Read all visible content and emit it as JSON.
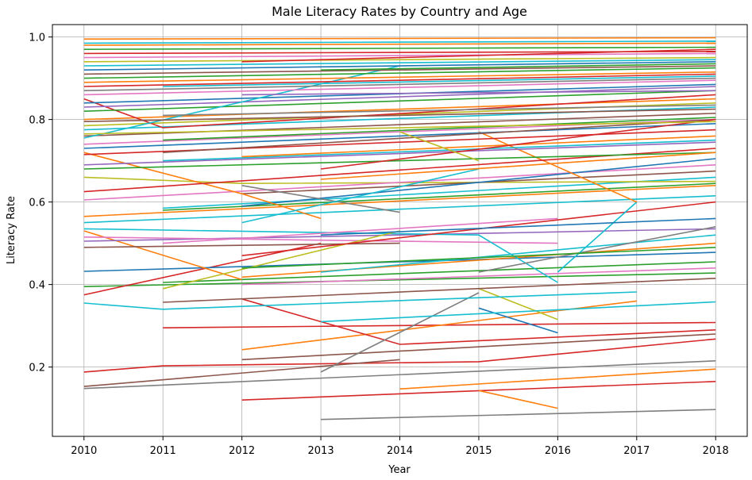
{
  "chart_data": {
    "type": "line",
    "title": "Male Literacy Rates by Country and Age",
    "xlabel": "Year",
    "ylabel": "Literacy Rate",
    "xlim": [
      2009.6,
      2018.4
    ],
    "ylim": [
      0.032,
      1.03
    ],
    "grid": true,
    "x_ticks": [
      2010,
      2011,
      2012,
      2013,
      2014,
      2015,
      2016,
      2017,
      2018
    ],
    "y_ticks": [
      0.2,
      0.4,
      0.6,
      0.8,
      1.0
    ],
    "x_tick_labels": [
      "2010",
      "2011",
      "2012",
      "2013",
      "2014",
      "2015",
      "2016",
      "2017",
      "2018"
    ],
    "y_tick_labels": [
      "0.2",
      "0.4",
      "0.6",
      "0.8",
      "1.0"
    ],
    "series": [
      {
        "color": "#d62728",
        "x": [
          2010,
          2011,
          2015,
          2018
        ],
        "y": [
          0.188,
          0.203,
          0.213,
          0.268
        ]
      },
      {
        "color": "#8c564b",
        "x": [
          2010,
          2014
        ],
        "y": [
          0.153,
          0.218
        ]
      },
      {
        "color": "#7f7f7f",
        "x": [
          2010,
          2018
        ],
        "y": [
          0.148,
          0.215
        ]
      },
      {
        "color": "#d62728",
        "x": [
          2012,
          2018
        ],
        "y": [
          0.12,
          0.165
        ]
      },
      {
        "color": "#7f7f7f",
        "x": [
          2013,
          2018
        ],
        "y": [
          0.073,
          0.097
        ]
      },
      {
        "color": "#ff7f0e",
        "x": [
          2014,
          2018
        ],
        "y": [
          0.147,
          0.195
        ]
      },
      {
        "color": "#ff7f0e",
        "x": [
          2015,
          2016
        ],
        "y": [
          0.143,
          0.1
        ]
      },
      {
        "color": "#8c564b",
        "x": [
          2012,
          2018
        ],
        "y": [
          0.218,
          0.28
        ]
      },
      {
        "color": "#d62728",
        "x": [
          2011,
          2018
        ],
        "y": [
          0.295,
          0.308
        ]
      },
      {
        "color": "#ff7f0e",
        "x": [
          2012,
          2017
        ],
        "y": [
          0.242,
          0.36
        ]
      },
      {
        "color": "#d62728",
        "x": [
          2012,
          2014,
          2018
        ],
        "y": [
          0.365,
          0.255,
          0.29
        ]
      },
      {
        "color": "#7f7f7f",
        "x": [
          2013,
          2015
        ],
        "y": [
          0.188,
          0.38
        ]
      },
      {
        "color": "#1f77b4",
        "x": [
          2015,
          2016
        ],
        "y": [
          0.343,
          0.283
        ]
      },
      {
        "color": "#bcbd22",
        "x": [
          2015,
          2016
        ],
        "y": [
          0.39,
          0.315
        ]
      },
      {
        "color": "#17becf",
        "x": [
          2013,
          2018
        ],
        "y": [
          0.31,
          0.358
        ]
      },
      {
        "color": "#17becf",
        "x": [
          2010,
          2011,
          2017
        ],
        "y": [
          0.355,
          0.34,
          0.382
        ]
      },
      {
        "color": "#8c564b",
        "x": [
          2011,
          2018
        ],
        "y": [
          0.357,
          0.415
        ]
      },
      {
        "color": "#2ca02c",
        "x": [
          2010,
          2018
        ],
        "y": [
          0.395,
          0.428
        ]
      },
      {
        "color": "#d62728",
        "x": [
          2010,
          2013
        ],
        "y": [
          0.375,
          0.5
        ]
      },
      {
        "color": "#1f77b4",
        "x": [
          2010,
          2018
        ],
        "y": [
          0.432,
          0.478
        ]
      },
      {
        "color": "#e377c2",
        "x": [
          2012,
          2018
        ],
        "y": [
          0.4,
          0.44
        ]
      },
      {
        "color": "#2ca02c",
        "x": [
          2011,
          2018
        ],
        "y": [
          0.405,
          0.455
        ]
      },
      {
        "color": "#ff7f0e",
        "x": [
          2010,
          2012
        ],
        "y": [
          0.53,
          0.412
        ]
      },
      {
        "color": "#ff7f0e",
        "x": [
          2012,
          2018
        ],
        "y": [
          0.418,
          0.5
        ]
      },
      {
        "color": "#8c564b",
        "x": [
          2010,
          2014
        ],
        "y": [
          0.49,
          0.5
        ]
      },
      {
        "color": "#17becf",
        "x": [
          2013,
          2018
        ],
        "y": [
          0.43,
          0.52
        ]
      },
      {
        "color": "#9467bd",
        "x": [
          2010,
          2018
        ],
        "y": [
          0.505,
          0.535
        ]
      },
      {
        "color": "#e377c2",
        "x": [
          2010,
          2016
        ],
        "y": [
          0.515,
          0.5
        ]
      },
      {
        "color": "#17becf",
        "x": [
          2010,
          2015,
          2016
        ],
        "y": [
          0.535,
          0.52,
          0.405
        ]
      },
      {
        "color": "#bcbd22",
        "x": [
          2011,
          2014
        ],
        "y": [
          0.39,
          0.53
        ]
      },
      {
        "color": "#7f7f7f",
        "x": [
          2015,
          2018
        ],
        "y": [
          0.43,
          0.54
        ]
      },
      {
        "color": "#d62728",
        "x": [
          2012,
          2018
        ],
        "y": [
          0.47,
          0.6
        ]
      },
      {
        "color": "#17becf",
        "x": [
          2016,
          2017
        ],
        "y": [
          0.43,
          0.6
        ]
      },
      {
        "color": "#17becf",
        "x": [
          2010,
          2018
        ],
        "y": [
          0.55,
          0.615
        ]
      },
      {
        "color": "#ff7f0e",
        "x": [
          2010,
          2018
        ],
        "y": [
          0.565,
          0.64
        ]
      },
      {
        "color": "#2ca02c",
        "x": [
          2011,
          2018
        ],
        "y": [
          0.58,
          0.645
        ]
      },
      {
        "color": "#17becf",
        "x": [
          2011,
          2018
        ],
        "y": [
          0.585,
          0.66
        ]
      },
      {
        "color": "#bcbd22",
        "x": [
          2010,
          2012,
          2018
        ],
        "y": [
          0.66,
          0.645,
          0.65
        ]
      },
      {
        "color": "#e377c2",
        "x": [
          2010,
          2018
        ],
        "y": [
          0.605,
          0.69
        ]
      },
      {
        "color": "#8c564b",
        "x": [
          2012,
          2018
        ],
        "y": [
          0.62,
          0.675
        ]
      },
      {
        "color": "#1f77b4",
        "x": [
          2012,
          2018
        ],
        "y": [
          0.59,
          0.705
        ]
      },
      {
        "color": "#ff7f0e",
        "x": [
          2010,
          2012,
          2013
        ],
        "y": [
          0.72,
          0.62,
          0.56
        ]
      },
      {
        "color": "#ff7f0e",
        "x": [
          2015,
          2017
        ],
        "y": [
          0.77,
          0.6
        ]
      },
      {
        "color": "#d62728",
        "x": [
          2010,
          2018
        ],
        "y": [
          0.625,
          0.73
        ]
      },
      {
        "color": "#2ca02c",
        "x": [
          2010,
          2018
        ],
        "y": [
          0.68,
          0.72
        ]
      },
      {
        "color": "#9467bd",
        "x": [
          2010,
          2018
        ],
        "y": [
          0.69,
          0.745
        ]
      },
      {
        "color": "#17becf",
        "x": [
          2011,
          2018
        ],
        "y": [
          0.7,
          0.75
        ]
      },
      {
        "color": "#ff7f0e",
        "x": [
          2012,
          2018
        ],
        "y": [
          0.71,
          0.76
        ]
      },
      {
        "color": "#d62728",
        "x": [
          2010,
          2018
        ],
        "y": [
          0.715,
          0.775
        ]
      },
      {
        "color": "#1f77b4",
        "x": [
          2010,
          2018
        ],
        "y": [
          0.73,
          0.79
        ]
      },
      {
        "color": "#e377c2",
        "x": [
          2010,
          2018
        ],
        "y": [
          0.74,
          0.8
        ]
      },
      {
        "color": "#2ca02c",
        "x": [
          2011,
          2018
        ],
        "y": [
          0.75,
          0.805
        ]
      },
      {
        "color": "#8c564b",
        "x": [
          2010,
          2018
        ],
        "y": [
          0.76,
          0.815
        ]
      },
      {
        "color": "#17becf",
        "x": [
          2010,
          2018
        ],
        "y": [
          0.775,
          0.83
        ]
      },
      {
        "color": "#bcbd22",
        "x": [
          2010,
          2018
        ],
        "y": [
          0.785,
          0.84
        ]
      },
      {
        "color": "#ff7f0e",
        "x": [
          2010,
          2018
        ],
        "y": [
          0.8,
          0.85
        ]
      },
      {
        "color": "#d62728",
        "x": [
          2010,
          2011,
          2018
        ],
        "y": [
          0.85,
          0.78,
          0.86
        ]
      },
      {
        "color": "#2ca02c",
        "x": [
          2010,
          2018
        ],
        "y": [
          0.82,
          0.87
        ]
      },
      {
        "color": "#9467bd",
        "x": [
          2010,
          2018
        ],
        "y": [
          0.83,
          0.88
        ]
      },
      {
        "color": "#1f77b4",
        "x": [
          2010,
          2018
        ],
        "y": [
          0.84,
          0.885
        ]
      },
      {
        "color": "#17becf",
        "x": [
          2010,
          2014
        ],
        "y": [
          0.755,
          0.93
        ]
      },
      {
        "color": "#e377c2",
        "x": [
          2010,
          2018
        ],
        "y": [
          0.86,
          0.895
        ]
      },
      {
        "color": "#7f7f7f",
        "x": [
          2010,
          2018
        ],
        "y": [
          0.87,
          0.9
        ]
      },
      {
        "color": "#d62728",
        "x": [
          2010,
          2018
        ],
        "y": [
          0.88,
          0.91
        ]
      },
      {
        "color": "#ff7f0e",
        "x": [
          2010,
          2018
        ],
        "y": [
          0.89,
          0.915
        ]
      },
      {
        "color": "#2ca02c",
        "x": [
          2010,
          2018
        ],
        "y": [
          0.9,
          0.925
        ]
      },
      {
        "color": "#8c564b",
        "x": [
          2010,
          2018
        ],
        "y": [
          0.91,
          0.93
        ]
      },
      {
        "color": "#1f77b4",
        "x": [
          2010,
          2018
        ],
        "y": [
          0.92,
          0.94
        ]
      },
      {
        "color": "#17becf",
        "x": [
          2010,
          2018
        ],
        "y": [
          0.93,
          0.945
        ]
      },
      {
        "color": "#bcbd22",
        "x": [
          2010,
          2018
        ],
        "y": [
          0.94,
          0.95
        ]
      },
      {
        "color": "#e377c2",
        "x": [
          2010,
          2018
        ],
        "y": [
          0.95,
          0.96
        ]
      },
      {
        "color": "#d62728",
        "x": [
          2010,
          2018
        ],
        "y": [
          0.96,
          0.965
        ]
      },
      {
        "color": "#2ca02c",
        "x": [
          2010,
          2018
        ],
        "y": [
          0.97,
          0.975
        ]
      },
      {
        "color": "#ff7f0e",
        "x": [
          2010,
          2018
        ],
        "y": [
          0.98,
          0.985
        ]
      },
      {
        "color": "#17becf",
        "x": [
          2010,
          2018
        ],
        "y": [
          0.985,
          0.99
        ]
      },
      {
        "color": "#ff7f0e",
        "x": [
          2010,
          2018
        ],
        "y": [
          0.995,
          0.998
        ]
      },
      {
        "color": "#8c564b",
        "x": [
          2011,
          2018
        ],
        "y": [
          0.72,
          0.8
        ]
      },
      {
        "color": "#7f7f7f",
        "x": [
          2012,
          2014
        ],
        "y": [
          0.64,
          0.575
        ]
      },
      {
        "color": "#17becf",
        "x": [
          2012,
          2015
        ],
        "y": [
          0.55,
          0.68
        ]
      },
      {
        "color": "#d62728",
        "x": [
          2013,
          2018
        ],
        "y": [
          0.68,
          0.8
        ]
      },
      {
        "color": "#bcbd22",
        "x": [
          2014,
          2015
        ],
        "y": [
          0.77,
          0.7
        ]
      },
      {
        "color": "#1f77b4",
        "x": [
          2013,
          2018
        ],
        "y": [
          0.52,
          0.56
        ]
      },
      {
        "color": "#2ca02c",
        "x": [
          2012,
          2018
        ],
        "y": [
          0.44,
          0.49
        ]
      },
      {
        "color": "#e377c2",
        "x": [
          2011,
          2016
        ],
        "y": [
          0.5,
          0.56
        ]
      },
      {
        "color": "#ff7f0e",
        "x": [
          2013,
          2018
        ],
        "y": [
          0.655,
          0.72
        ]
      },
      {
        "color": "#9467bd",
        "x": [
          2012,
          2018
        ],
        "y": [
          0.86,
          0.87
        ]
      },
      {
        "color": "#17becf",
        "x": [
          2011,
          2018
        ],
        "y": [
          0.88,
          0.905
        ]
      },
      {
        "color": "#d62728",
        "x": [
          2012,
          2018
        ],
        "y": [
          0.94,
          0.97
        ]
      },
      {
        "color": "#2ca02c",
        "x": [
          2013,
          2018
        ],
        "y": [
          0.92,
          0.935
        ]
      },
      {
        "color": "#8c564b",
        "x": [
          2010,
          2018
        ],
        "y": [
          0.795,
          0.825
        ]
      },
      {
        "color": "#bcbd22",
        "x": [
          2010,
          2018
        ],
        "y": [
          0.765,
          0.795
        ]
      },
      {
        "color": "#7f7f7f",
        "x": [
          2011,
          2018
        ],
        "y": [
          0.81,
          0.835
        ]
      }
    ]
  }
}
